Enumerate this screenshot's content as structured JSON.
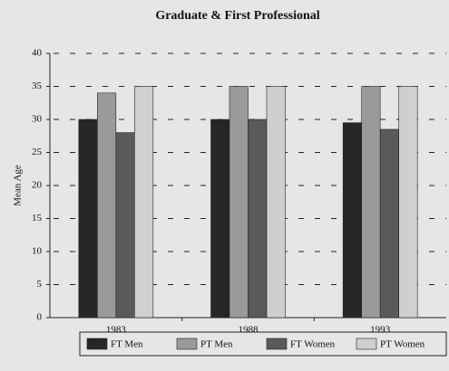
{
  "chart_data": {
    "type": "bar",
    "title": "Graduate & First Professional",
    "y_label": "Mean Age",
    "categories": [
      "1983",
      "1988",
      "1993"
    ],
    "series": [
      {
        "name": "FT Men",
        "color": "#262626",
        "values": [
          30,
          30,
          29.5
        ]
      },
      {
        "name": "PT Men",
        "color": "#9a9a9a",
        "values": [
          34,
          35,
          35
        ]
      },
      {
        "name": "FT Women",
        "color": "#5a5a5a",
        "values": [
          28,
          30,
          28.5
        ]
      },
      {
        "name": "PT Women",
        "color": "#cfcfcf",
        "values": [
          35,
          35,
          35
        ]
      }
    ],
    "ylim": [
      0,
      40
    ],
    "yticks": [
      0,
      5,
      10,
      15,
      20,
      25,
      30,
      35,
      40
    ],
    "grid": true,
    "legend": "bottom"
  }
}
